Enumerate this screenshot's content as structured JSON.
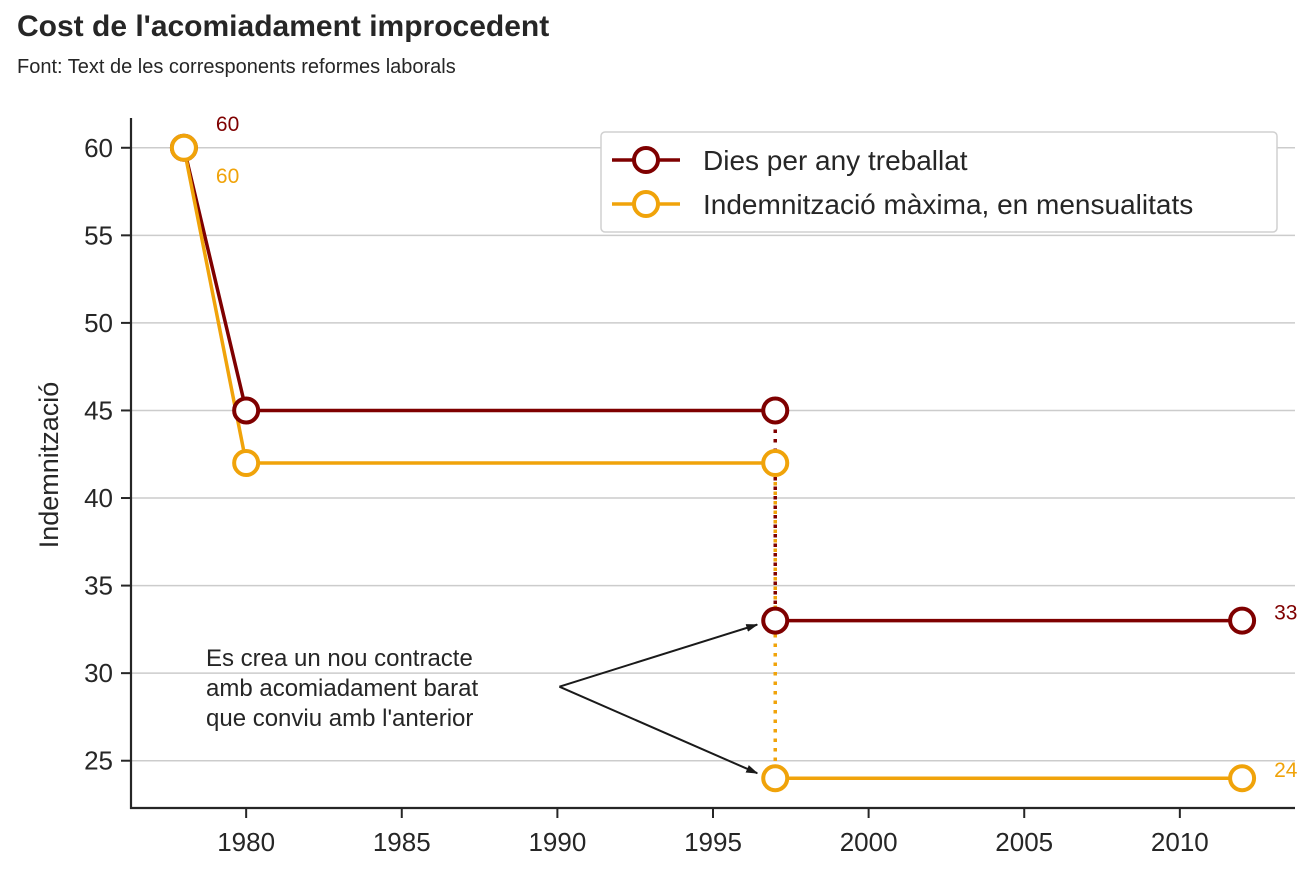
{
  "chart_data": {
    "type": "line",
    "title": "Cost de l'acomiadament improcedent",
    "subtitle": "Font: Text de les corresponents reformes laborals",
    "xlabel": "",
    "ylabel": "Indemnització",
    "xlim": [
      1976.3,
      2013.7
    ],
    "ylim": [
      22.3,
      61.7
    ],
    "xticks": [
      1980,
      1985,
      1990,
      1995,
      2000,
      2005,
      2010
    ],
    "yticks": [
      25,
      30,
      35,
      40,
      45,
      50,
      55,
      60
    ],
    "grid": "horizontal",
    "legend_position": "top-right",
    "series": [
      {
        "name": "Dies per any treballat",
        "color": "#7f0000",
        "segments": [
          {
            "x": [
              1978,
              1980,
              1997
            ],
            "y": [
              60,
              45,
              45
            ],
            "style": "solid"
          },
          {
            "x": [
              1997,
              1997
            ],
            "y": [
              45,
              33
            ],
            "style": "dotted"
          },
          {
            "x": [
              1997,
              2012
            ],
            "y": [
              33,
              33
            ],
            "style": "solid"
          }
        ],
        "points": [
          {
            "x": 1978,
            "y": 60
          },
          {
            "x": 1980,
            "y": 45
          },
          {
            "x": 1997,
            "y": 45
          },
          {
            "x": 1997,
            "y": 33
          },
          {
            "x": 2012,
            "y": 33
          }
        ],
        "labels": [
          {
            "x": 1978,
            "y": 60,
            "text": "60",
            "pos": "above-right"
          },
          {
            "x": 2012,
            "y": 33,
            "text": "33",
            "pos": "right"
          }
        ]
      },
      {
        "name": "Indemnització màxima, en mensualitats",
        "color": "#f0a30a",
        "segments": [
          {
            "x": [
              1978,
              1980,
              1997
            ],
            "y": [
              60,
              42,
              42
            ],
            "style": "solid"
          },
          {
            "x": [
              1997,
              1997
            ],
            "y": [
              42,
              24
            ],
            "style": "dotted"
          },
          {
            "x": [
              1997,
              2012
            ],
            "y": [
              24,
              24
            ],
            "style": "solid"
          }
        ],
        "points": [
          {
            "x": 1978,
            "y": 60
          },
          {
            "x": 1980,
            "y": 42
          },
          {
            "x": 1997,
            "y": 42
          },
          {
            "x": 1997,
            "y": 24
          },
          {
            "x": 2012,
            "y": 24
          }
        ],
        "labels": [
          {
            "x": 1978,
            "y": 60,
            "text": "60",
            "pos": "below-right"
          },
          {
            "x": 2012,
            "y": 24,
            "text": "24",
            "pos": "right"
          }
        ]
      }
    ],
    "annotation": {
      "lines": [
        "Es crea un nou contracte",
        "amb acomiadament barat",
        "que conviu amb l'anterior"
      ],
      "origin": {
        "x": 1990,
        "y": 29.4
      },
      "targets": [
        {
          "x": 1997,
          "y": 33
        },
        {
          "x": 1997,
          "y": 24
        }
      ]
    }
  }
}
